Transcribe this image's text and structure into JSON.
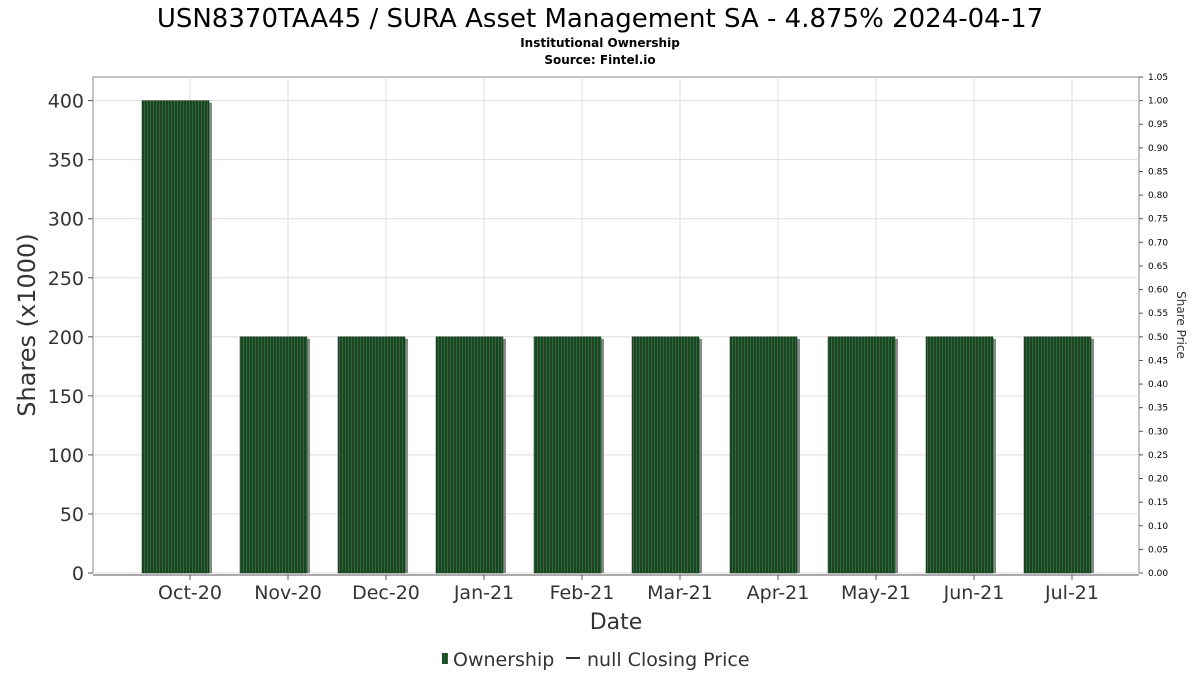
{
  "chart_data": {
    "type": "bar",
    "title": "USN8370TAA45 / SURA Asset Management SA - 4.875% 2024-04-17",
    "subtitle_1": "Institutional Ownership",
    "subtitle_2": "Source: Fintel.io",
    "xlabel": "Date",
    "ylabel": "Shares (x1000)",
    "ylabel_right": "Share Price",
    "categories": [
      "Oct-20",
      "Nov-20",
      "Dec-20",
      "Jan-21",
      "Feb-21",
      "Mar-21",
      "Apr-21",
      "May-21",
      "Jun-21",
      "Jul-21"
    ],
    "series": [
      {
        "name": "Ownership",
        "values": [
          400,
          200,
          200,
          200,
          200,
          200,
          200,
          200,
          200,
          200
        ]
      }
    ],
    "ylim": [
      0,
      420
    ],
    "yticks": [
      0,
      50,
      100,
      150,
      200,
      250,
      300,
      350,
      400
    ],
    "y2lim": [
      0,
      1.05
    ],
    "y2ticks": [
      "0.00",
      "0.05",
      "0.10",
      "0.15",
      "0.20",
      "0.25",
      "0.30",
      "0.35",
      "0.40",
      "0.45",
      "0.50",
      "0.55",
      "0.60",
      "0.65",
      "0.70",
      "0.75",
      "0.80",
      "0.85",
      "0.90",
      "0.95",
      "1.00",
      "1.05"
    ],
    "grid": true,
    "legend": {
      "placement": "bottom-center",
      "items": [
        "Ownership",
        "null Closing Price"
      ]
    },
    "colors": {
      "bar": "#1a4424",
      "bar_stripe": "#2f6a3a",
      "bar_shadow": "#8a8a8a",
      "grid": "#dddddd",
      "axis": "#888888"
    }
  }
}
